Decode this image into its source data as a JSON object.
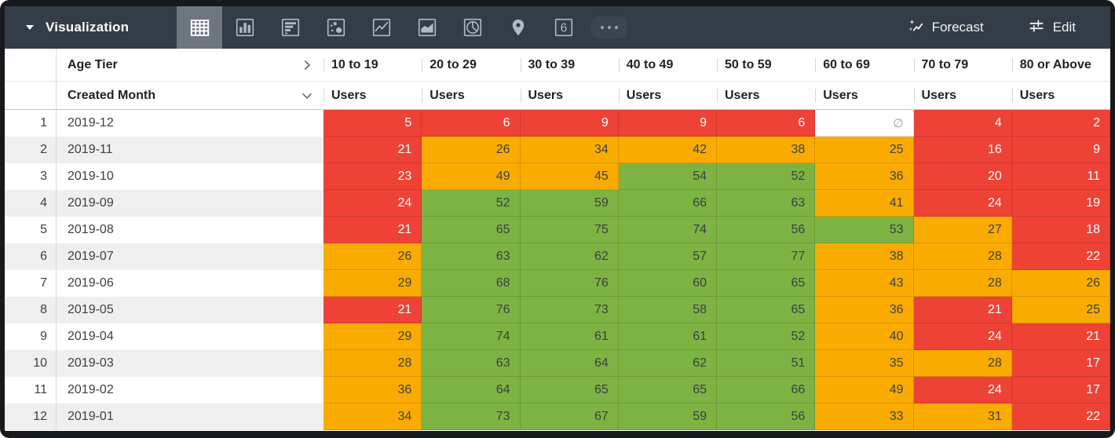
{
  "header": {
    "title": "Visualization",
    "viz_types": [
      {
        "name": "table",
        "selected": true
      },
      {
        "name": "column-chart",
        "selected": false
      },
      {
        "name": "bar-chart",
        "selected": false
      },
      {
        "name": "scatter",
        "selected": false
      },
      {
        "name": "line-chart",
        "selected": false
      },
      {
        "name": "area-chart",
        "selected": false
      },
      {
        "name": "pie-chart",
        "selected": false
      },
      {
        "name": "map",
        "selected": false
      },
      {
        "name": "single-value",
        "selected": false
      },
      {
        "name": "more",
        "selected": false
      }
    ],
    "single_value_glyph": "6",
    "forecast_label": "Forecast",
    "edit_label": "Edit"
  },
  "table": {
    "pivot_label": "Age Tier",
    "dimension_label": "Created Month",
    "measure_label": "Users",
    "null_symbol": "∅",
    "columns": [
      "10 to 19",
      "20 to 29",
      "30 to 39",
      "40 to 49",
      "50 to 59",
      "60 to 69",
      "70 to 79",
      "80 or Above"
    ],
    "rows": [
      {
        "index": 1,
        "month": "2019-12",
        "cells": [
          {
            "value": 5,
            "color": "red"
          },
          {
            "value": 6,
            "color": "red"
          },
          {
            "value": 9,
            "color": "red"
          },
          {
            "value": 9,
            "color": "red"
          },
          {
            "value": 6,
            "color": "red"
          },
          {
            "value": null,
            "color": "null"
          },
          {
            "value": 4,
            "color": "red"
          },
          {
            "value": 2,
            "color": "red"
          }
        ]
      },
      {
        "index": 2,
        "month": "2019-11",
        "cells": [
          {
            "value": 21,
            "color": "red"
          },
          {
            "value": 26,
            "color": "orange"
          },
          {
            "value": 34,
            "color": "orange"
          },
          {
            "value": 42,
            "color": "orange"
          },
          {
            "value": 38,
            "color": "orange"
          },
          {
            "value": 25,
            "color": "orange"
          },
          {
            "value": 16,
            "color": "red"
          },
          {
            "value": 9,
            "color": "red"
          }
        ]
      },
      {
        "index": 3,
        "month": "2019-10",
        "cells": [
          {
            "value": 23,
            "color": "red"
          },
          {
            "value": 49,
            "color": "orange"
          },
          {
            "value": 45,
            "color": "orange"
          },
          {
            "value": 54,
            "color": "green"
          },
          {
            "value": 52,
            "color": "green"
          },
          {
            "value": 36,
            "color": "orange"
          },
          {
            "value": 20,
            "color": "red"
          },
          {
            "value": 11,
            "color": "red"
          }
        ]
      },
      {
        "index": 4,
        "month": "2019-09",
        "cells": [
          {
            "value": 24,
            "color": "red"
          },
          {
            "value": 52,
            "color": "green"
          },
          {
            "value": 59,
            "color": "green"
          },
          {
            "value": 66,
            "color": "green"
          },
          {
            "value": 63,
            "color": "green"
          },
          {
            "value": 41,
            "color": "orange"
          },
          {
            "value": 24,
            "color": "red"
          },
          {
            "value": 19,
            "color": "red"
          }
        ]
      },
      {
        "index": 5,
        "month": "2019-08",
        "cells": [
          {
            "value": 21,
            "color": "red"
          },
          {
            "value": 65,
            "color": "green"
          },
          {
            "value": 75,
            "color": "green"
          },
          {
            "value": 74,
            "color": "green"
          },
          {
            "value": 56,
            "color": "green"
          },
          {
            "value": 53,
            "color": "green"
          },
          {
            "value": 27,
            "color": "orange"
          },
          {
            "value": 18,
            "color": "red"
          }
        ]
      },
      {
        "index": 6,
        "month": "2019-07",
        "cells": [
          {
            "value": 26,
            "color": "orange"
          },
          {
            "value": 63,
            "color": "green"
          },
          {
            "value": 62,
            "color": "green"
          },
          {
            "value": 57,
            "color": "green"
          },
          {
            "value": 77,
            "color": "green"
          },
          {
            "value": 38,
            "color": "orange"
          },
          {
            "value": 28,
            "color": "orange"
          },
          {
            "value": 22,
            "color": "red"
          }
        ]
      },
      {
        "index": 7,
        "month": "2019-06",
        "cells": [
          {
            "value": 29,
            "color": "orange"
          },
          {
            "value": 68,
            "color": "green"
          },
          {
            "value": 76,
            "color": "green"
          },
          {
            "value": 60,
            "color": "green"
          },
          {
            "value": 65,
            "color": "green"
          },
          {
            "value": 43,
            "color": "orange"
          },
          {
            "value": 28,
            "color": "orange"
          },
          {
            "value": 26,
            "color": "orange"
          }
        ]
      },
      {
        "index": 8,
        "month": "2019-05",
        "cells": [
          {
            "value": 21,
            "color": "red"
          },
          {
            "value": 76,
            "color": "green"
          },
          {
            "value": 73,
            "color": "green"
          },
          {
            "value": 58,
            "color": "green"
          },
          {
            "value": 65,
            "color": "green"
          },
          {
            "value": 36,
            "color": "orange"
          },
          {
            "value": 21,
            "color": "red"
          },
          {
            "value": 25,
            "color": "orange"
          }
        ]
      },
      {
        "index": 9,
        "month": "2019-04",
        "cells": [
          {
            "value": 29,
            "color": "orange"
          },
          {
            "value": 74,
            "color": "green"
          },
          {
            "value": 61,
            "color": "green"
          },
          {
            "value": 61,
            "color": "green"
          },
          {
            "value": 52,
            "color": "green"
          },
          {
            "value": 40,
            "color": "orange"
          },
          {
            "value": 24,
            "color": "red"
          },
          {
            "value": 21,
            "color": "red"
          }
        ]
      },
      {
        "index": 10,
        "month": "2019-03",
        "cells": [
          {
            "value": 28,
            "color": "orange"
          },
          {
            "value": 63,
            "color": "green"
          },
          {
            "value": 64,
            "color": "green"
          },
          {
            "value": 62,
            "color": "green"
          },
          {
            "value": 51,
            "color": "green"
          },
          {
            "value": 35,
            "color": "orange"
          },
          {
            "value": 28,
            "color": "orange"
          },
          {
            "value": 17,
            "color": "red"
          }
        ]
      },
      {
        "index": 11,
        "month": "2019-02",
        "cells": [
          {
            "value": 36,
            "color": "orange"
          },
          {
            "value": 64,
            "color": "green"
          },
          {
            "value": 65,
            "color": "green"
          },
          {
            "value": 65,
            "color": "green"
          },
          {
            "value": 66,
            "color": "green"
          },
          {
            "value": 49,
            "color": "orange"
          },
          {
            "value": 24,
            "color": "red"
          },
          {
            "value": 17,
            "color": "red"
          }
        ]
      },
      {
        "index": 12,
        "month": "2019-01",
        "cells": [
          {
            "value": 34,
            "color": "orange"
          },
          {
            "value": 73,
            "color": "green"
          },
          {
            "value": 67,
            "color": "green"
          },
          {
            "value": 59,
            "color": "green"
          },
          {
            "value": 56,
            "color": "green"
          },
          {
            "value": 33,
            "color": "orange"
          },
          {
            "value": 31,
            "color": "orange"
          },
          {
            "value": 22,
            "color": "red"
          }
        ]
      }
    ]
  },
  "colors": {
    "red": "#ee4236",
    "orange": "#f9ab00",
    "green": "#7cb342",
    "topbar_bg": "#333c47",
    "selected_viz_bg": "#6e7680",
    "stripe_bg": "#efefef"
  }
}
